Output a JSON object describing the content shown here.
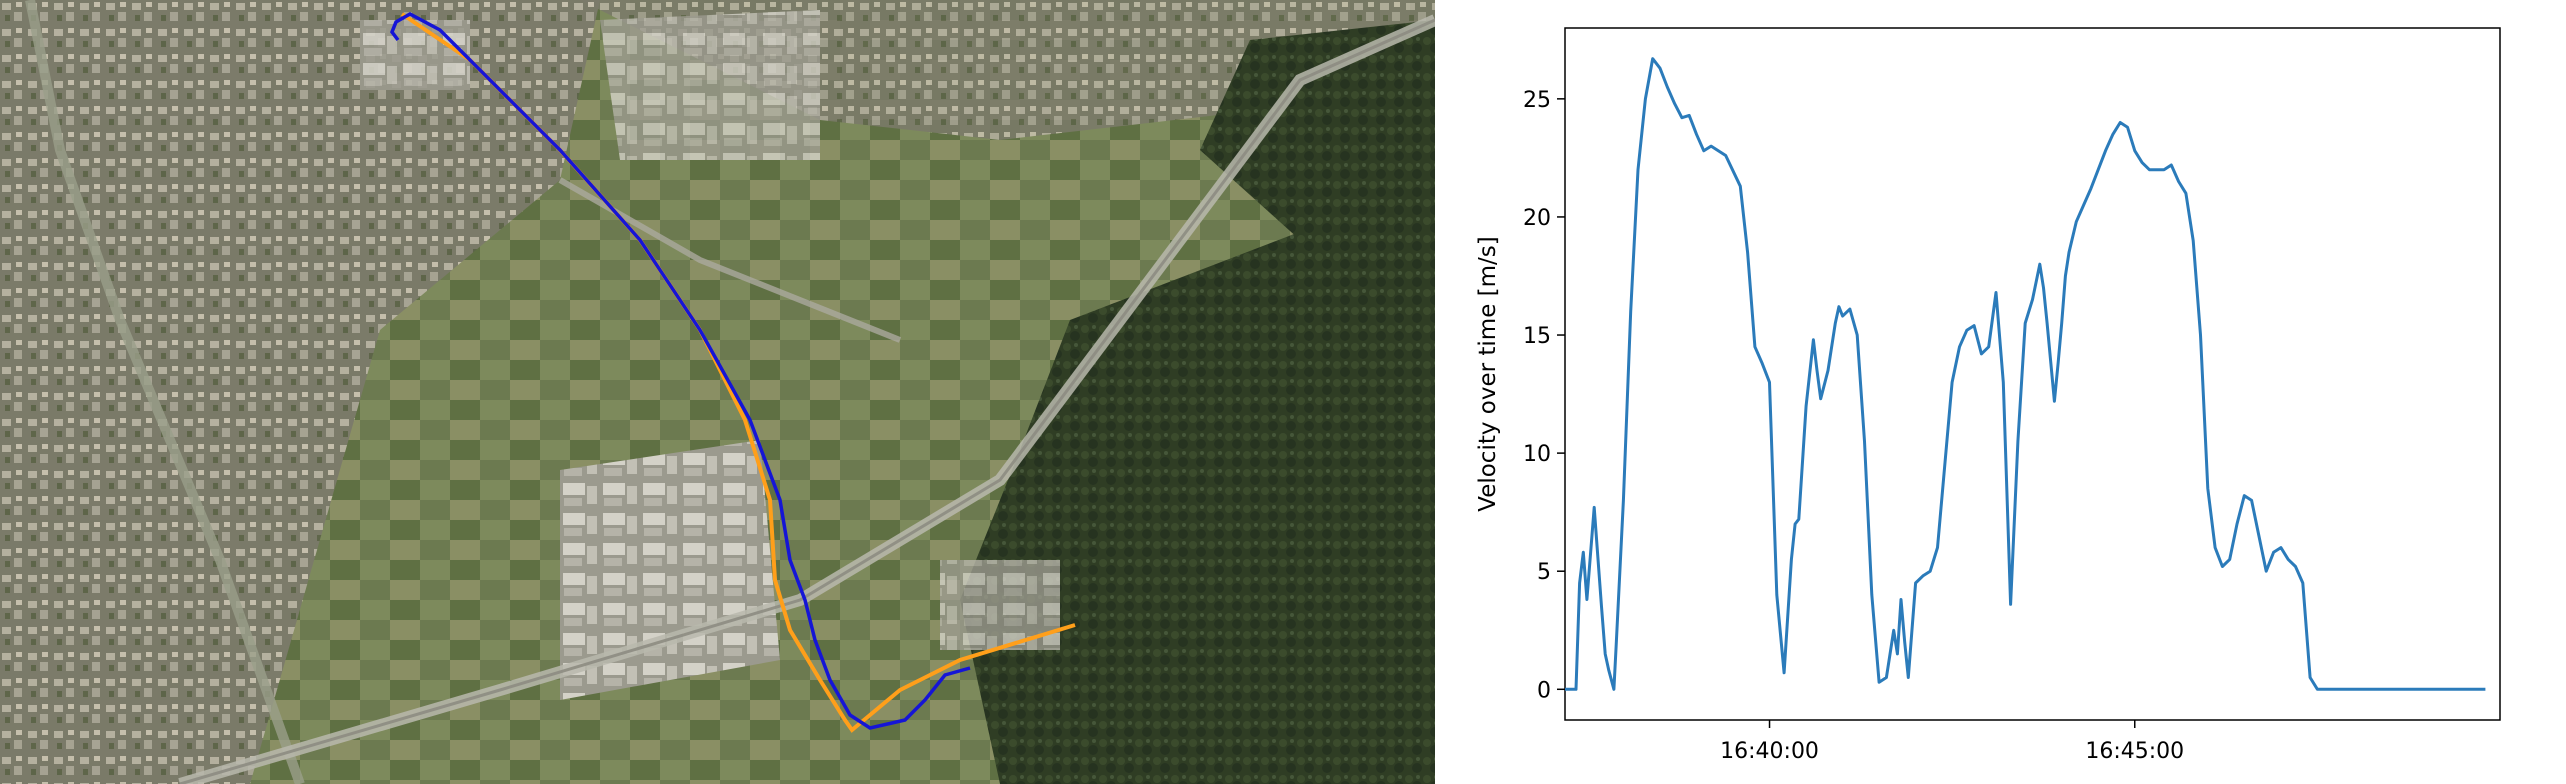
{
  "map": {
    "route_colors": {
      "planned": "#ff9f1a",
      "driven": "#1515d6"
    }
  },
  "chart_data": {
    "type": "line",
    "title": "",
    "xlabel": "",
    "ylabel": "Velocity over time [m/s]",
    "x_ticks": [
      "16:40:00",
      "16:45:00"
    ],
    "x_tick_values": [
      2.8,
      7.8
    ],
    "y_ticks": [
      "0",
      "5",
      "10",
      "15",
      "20",
      "25"
    ],
    "y_tick_values": [
      0,
      5,
      10,
      15,
      20,
      25
    ],
    "xlim": [
      0,
      12.8
    ],
    "ylim": [
      -1.3,
      28
    ],
    "grid": false,
    "line_color": "#2b7bba",
    "series": [
      {
        "x": [
          0,
          0.15,
          0.2,
          0.25,
          0.3,
          0.4,
          0.5,
          0.55,
          0.6,
          0.67,
          0.7,
          0.8,
          0.9,
          1.0,
          1.1,
          1.2,
          1.3,
          1.4,
          1.5,
          1.6,
          1.7,
          1.8,
          1.9,
          2.0,
          2.2,
          2.4,
          2.5,
          2.6,
          2.7,
          2.8,
          2.9,
          3.0,
          3.1,
          3.15,
          3.2,
          3.3,
          3.4,
          3.45,
          3.5,
          3.6,
          3.7,
          3.75,
          3.8,
          3.9,
          4.0,
          4.1,
          4.2,
          4.3,
          4.4,
          4.5,
          4.55,
          4.6,
          4.65,
          4.7,
          4.8,
          4.9,
          5.0,
          5.1,
          5.2,
          5.3,
          5.4,
          5.5,
          5.6,
          5.7,
          5.8,
          5.9,
          6.0,
          6.1,
          6.2,
          6.3,
          6.4,
          6.5,
          6.55,
          6.6,
          6.7,
          6.75,
          6.8,
          6.85,
          6.9,
          7.0,
          7.1,
          7.2,
          7.3,
          7.4,
          7.5,
          7.6,
          7.7,
          7.8,
          7.9,
          8.0,
          8.1,
          8.2,
          8.3,
          8.4,
          8.5,
          8.6,
          8.7,
          8.8,
          8.9,
          9.0,
          9.1,
          9.2,
          9.3,
          9.4,
          9.5,
          9.6,
          9.7,
          9.8,
          9.9,
          10.0,
          10.1,
          10.2,
          10.3,
          10.4,
          10.5,
          10.6,
          10.7,
          10.8,
          10.9,
          11.0,
          11.05,
          11.1,
          11.2,
          11.3,
          11.4,
          11.5,
          11.6,
          11.7,
          11.8,
          11.9,
          12.0,
          12.1,
          12.2,
          12.3,
          12.4,
          12.5,
          12.6
        ],
        "y": [
          0,
          0,
          4.5,
          5.8,
          3.8,
          7.7,
          3.5,
          1.5,
          0.8,
          0,
          1.8,
          8.0,
          16.0,
          22.0,
          25.0,
          26.7,
          26.3,
          25.5,
          24.8,
          24.2,
          24.3,
          23.5,
          22.8,
          23.0,
          22.6,
          21.3,
          18.5,
          14.5,
          13.8,
          13.0,
          4.0,
          0.7,
          5.5,
          7.0,
          7.2,
          12.0,
          14.8,
          13.5,
          12.3,
          13.5,
          15.5,
          16.2,
          15.8,
          16.1,
          15.0,
          10.5,
          4.0,
          0.3,
          0.5,
          2.5,
          1.5,
          3.8,
          2.0,
          0.5,
          4.5,
          4.8,
          5.0,
          6.0,
          9.5,
          13.0,
          14.5,
          15.2,
          15.4,
          14.2,
          14.5,
          16.8,
          13.0,
          3.6,
          10.5,
          15.5,
          16.5,
          18.0,
          17.0,
          15.5,
          12.2,
          13.8,
          15.5,
          17.5,
          18.5,
          19.8,
          20.5,
          21.2,
          22.0,
          22.8,
          23.5,
          24.0,
          23.8,
          22.8,
          22.3,
          22.0,
          22.0,
          22.0,
          22.2,
          21.5,
          21.0,
          19.0,
          15.0,
          8.5,
          6.0,
          5.2,
          5.5,
          7.0,
          8.2,
          8.0,
          6.5,
          5.0,
          5.8,
          6.0,
          5.5,
          5.2,
          4.5,
          0.5,
          0,
          0,
          0,
          0,
          0,
          0,
          0,
          0,
          0,
          0,
          0,
          0,
          0,
          0,
          0,
          0,
          0,
          0,
          0,
          0,
          0,
          0,
          0,
          0,
          0
        ]
      }
    ]
  }
}
